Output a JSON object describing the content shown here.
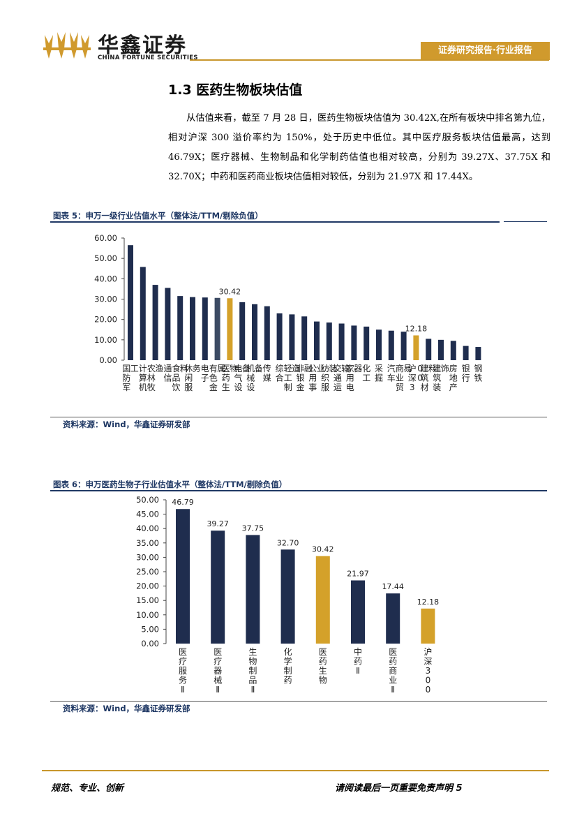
{
  "header": {
    "logo_cn": "华鑫证券",
    "logo_en": "CHINA FORTUNE SECURITIES",
    "tag": "证券研究报告·行业报告"
  },
  "section": {
    "title": "1.3 医药生物板块估值",
    "paragraph": "从估值来看，截至 7 月 28 日，医药生物板块估值为 30.42X,在所有板块中排名第九位，相对沪深 300 溢价率约为 150%，处于历史中低位。其中医疗服务板块估值最高，达到 46.79X；医疗器械、生物制品和化学制药估值也相对较高，分别为 39.27X、37.75X 和 32.70X；中药和医药商业板块估值相对较低，分别为 21.97X 和 17.44X。"
  },
  "figure5": {
    "caption": "图表 5：申万一级行业估值水平（整体法/TTM/剔除负值）",
    "source": "资料来源：Wind，华鑫证券研发部"
  },
  "figure6": {
    "caption": "图表 6：申万医药生物子行业估值水平（整体法/TTM/剔除负值）",
    "source": "资料来源：Wind，华鑫证券研发部"
  },
  "footer": {
    "left": "规范、专业、创新",
    "right": "请阅读最后一页重要免责声明 5"
  },
  "chart_data": [
    {
      "type": "bar",
      "categories": [
        "国防军工",
        "计算机",
        "农林牧渔",
        "通信",
        "食品饮料",
        "休闲服务",
        "电子",
        "有色金属",
        "医药生物",
        "电气设备",
        "机械设备",
        "传媒",
        "综合",
        "轻工制造",
        "非银金融",
        "公用事业",
        "纺织服装",
        "交通运输",
        "家用电器",
        "化工",
        "采掘",
        "汽车",
        "商业贸易",
        "沪深300",
        "建筑材料",
        "建筑装饰",
        "房地产",
        "银行",
        "钢铁"
      ],
      "values": [
        56.5,
        45.8,
        37.0,
        35.5,
        31.5,
        31.0,
        30.8,
        30.6,
        30.42,
        28.5,
        27.5,
        26.5,
        23.0,
        22.5,
        21.5,
        19.0,
        18.5,
        18.0,
        17.0,
        16.5,
        15.0,
        14.5,
        14.0,
        12.18,
        10.5,
        10.0,
        9.5,
        7.0,
        6.5
      ],
      "highlight": [
        "医药生物",
        "沪深300"
      ],
      "data_labels": {
        "医药生物": "30.42",
        "沪深300": "12.18"
      },
      "yticks": [
        "0.00",
        "10.00",
        "20.00",
        "30.00",
        "40.00",
        "50.00",
        "60.00"
      ],
      "ylim": [
        0,
        60
      ],
      "colors": {
        "default": "#1F2D4E",
        "highlight": "#D4A12A",
        "electronics": "#3B4A63"
      }
    },
    {
      "type": "bar",
      "categories": [
        "医疗服务Ⅱ",
        "医疗器械Ⅱ",
        "生物制品Ⅱ",
        "化学制药",
        "医药生物",
        "中药Ⅱ",
        "医药商业Ⅱ",
        "沪深300"
      ],
      "values": [
        46.79,
        39.27,
        37.75,
        32.7,
        30.42,
        21.97,
        17.44,
        12.18
      ],
      "data_labels": [
        "46.79",
        "39.27",
        "37.75",
        "32.70",
        "30.42",
        "21.97",
        "17.44",
        "12.18"
      ],
      "highlight": [
        "医药生物",
        "沪深300"
      ],
      "yticks": [
        "0.00",
        "5.00",
        "10.00",
        "15.00",
        "20.00",
        "25.00",
        "30.00",
        "35.00",
        "40.00",
        "45.00",
        "50.00"
      ],
      "ylim": [
        0,
        50
      ],
      "colors": {
        "default": "#1F2D4E",
        "highlight": "#D4A12A"
      }
    }
  ]
}
